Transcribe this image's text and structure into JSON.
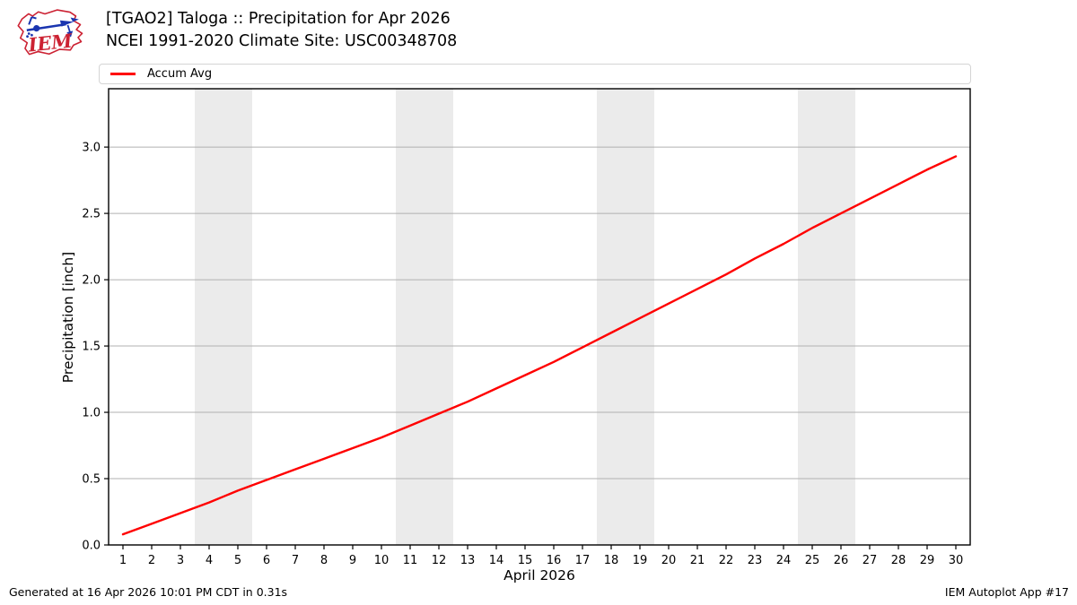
{
  "header": {
    "title_line1": "[TGAO2] Taloga :: Precipitation for Apr 2026",
    "title_line2": "NCEI 1991-2020 Climate Site: USC00348708"
  },
  "logo": {
    "text": "IEM"
  },
  "legend": {
    "items": [
      {
        "label": "Accum Avg",
        "color": "#ff0000"
      }
    ]
  },
  "chart_data": {
    "type": "line",
    "title": "[TGAO2] Taloga :: Precipitation for Apr 2026",
    "subtitle": "NCEI 1991-2020 Climate Site: USC00348708",
    "xlabel": "April 2026",
    "ylabel": "Precipitation [inch]",
    "x": [
      1,
      2,
      3,
      4,
      5,
      6,
      7,
      8,
      9,
      10,
      11,
      12,
      13,
      14,
      15,
      16,
      17,
      18,
      19,
      20,
      21,
      22,
      23,
      24,
      25,
      26,
      27,
      28,
      29,
      30
    ],
    "series": [
      {
        "name": "Accum Avg",
        "color": "#ff0000",
        "values": [
          0.08,
          0.16,
          0.24,
          0.32,
          0.41,
          0.49,
          0.57,
          0.65,
          0.73,
          0.81,
          0.9,
          0.99,
          1.08,
          1.18,
          1.28,
          1.38,
          1.49,
          1.6,
          1.71,
          1.82,
          1.93,
          2.04,
          2.16,
          2.27,
          2.39,
          2.5,
          2.61,
          2.72,
          2.83,
          2.93
        ]
      }
    ],
    "xlim": [
      0.5,
      30.5
    ],
    "ylim": [
      0,
      3.44
    ],
    "yticks": [
      0.0,
      0.5,
      1.0,
      1.5,
      2.0,
      2.5,
      3.0
    ],
    "ytick_decimals": 1,
    "grid": "horizontal",
    "gridline_color": "#b0b0b0",
    "weekend_band_color": "#ebebeb",
    "weekend_bands": [
      [
        3.5,
        5.5
      ],
      [
        10.5,
        12.5
      ],
      [
        17.5,
        19.5
      ],
      [
        24.5,
        26.5
      ]
    ],
    "legend_position": "top"
  },
  "footer": {
    "left": "Generated at 16 Apr 2026 10:01 PM CDT in 0.31s",
    "right": "IEM Autoplot App #17"
  }
}
